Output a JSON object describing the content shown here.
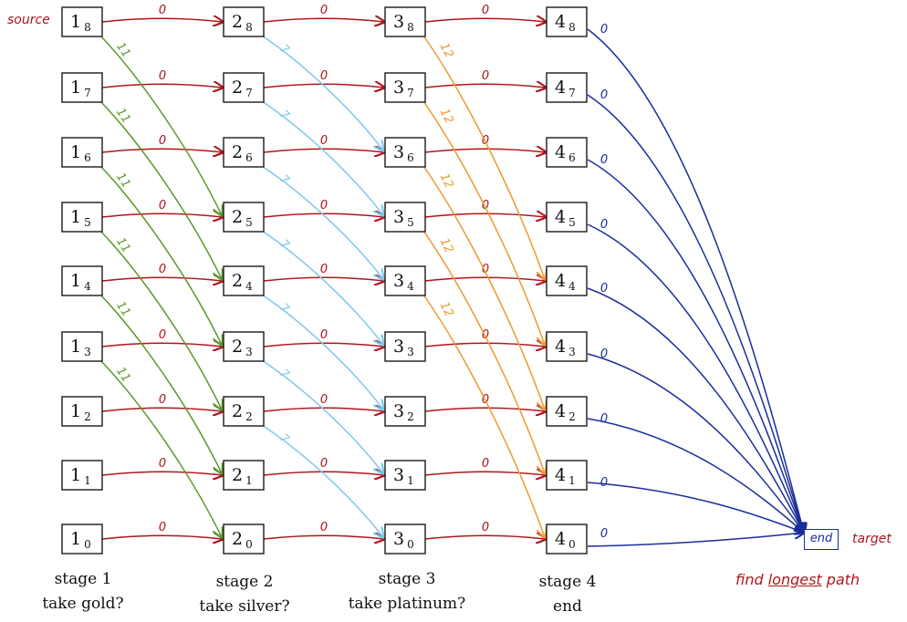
{
  "source_label": "source",
  "target_label": "target",
  "end_node_label": "end",
  "note": {
    "prefix": "find ",
    "emphasis": "longest",
    "suffix": " path"
  },
  "stages": [
    {
      "line1": "stage 1",
      "line2": "take gold?"
    },
    {
      "line1": "stage 2",
      "line2": "take silver?"
    },
    {
      "line1": "stage 3",
      "line2": "take platinum?"
    },
    {
      "line1": "stage 4",
      "line2": "end"
    }
  ],
  "node_states": [
    "8",
    "7",
    "6",
    "5",
    "4",
    "3",
    "2",
    "1",
    "0"
  ],
  "items": [
    {
      "stage": 1,
      "weight": "11",
      "color": "#5a9a2a",
      "state_drop": 3
    },
    {
      "stage": 2,
      "weight": "7",
      "color": "#7cc8ee",
      "state_drop": 2
    },
    {
      "stage": 3,
      "weight": "12",
      "color": "#eb9a2f",
      "state_drop": 4
    }
  ],
  "skip_weight": "0",
  "end_weight": "0",
  "colors": {
    "skip_edge": "#b0151b",
    "end_edge": "#1a2e9a",
    "node_border": "#1a1a1a"
  }
}
